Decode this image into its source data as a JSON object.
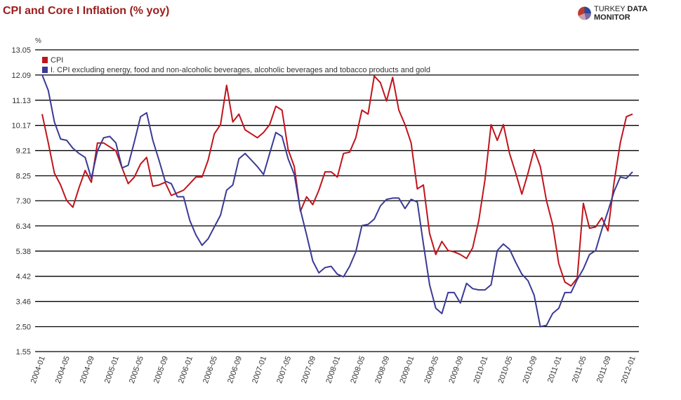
{
  "header": {
    "title": "CPI and Core I Inflation (% yoy)",
    "logo_text_light": "TURKEY",
    "logo_text_bold": "DATA MONITOR"
  },
  "chart_data": {
    "type": "line",
    "title": "CPI and Core I Inflation (% yoy)",
    "ylabel": "%",
    "xlabel": "",
    "ylim": [
      1.55,
      13.05
    ],
    "yticks": [
      "13.05",
      "12.09",
      "11.13",
      "10.17",
      "9.21",
      "8.25",
      "7.30",
      "6.34",
      "5.38",
      "4.42",
      "3.46",
      "2.50",
      "1.55"
    ],
    "xrange": [
      "2004-01",
      "2012-01"
    ],
    "xticks": [
      "2004-01",
      "2004-05",
      "2004-09",
      "2005-01",
      "2005-05",
      "2005-09",
      "2006-01",
      "2006-05",
      "2006-09",
      "2007-01",
      "2007-05",
      "2007-09",
      "2008-01",
      "2008-05",
      "2008-09",
      "2009-01",
      "2009-05",
      "2009-09",
      "2010-01",
      "2010-05",
      "2010-09",
      "2011-01",
      "2011-05",
      "2011-09",
      "2012-01"
    ],
    "grid": true,
    "legend_position": "top-left",
    "frequency": "monthly",
    "series": [
      {
        "name": "CPI",
        "color": "#c0141c",
        "values": [
          10.6,
          9.5,
          8.35,
          7.9,
          7.3,
          7.05,
          7.8,
          8.45,
          8.0,
          9.5,
          9.5,
          9.35,
          9.2,
          8.55,
          7.95,
          8.2,
          8.7,
          8.95,
          7.85,
          7.9,
          8.0,
          7.5,
          7.6,
          7.7,
          7.95,
          8.2,
          8.2,
          8.85,
          9.85,
          10.2,
          11.7,
          10.3,
          10.6,
          10.0,
          9.85,
          9.7,
          9.9,
          10.2,
          10.9,
          10.75,
          9.25,
          8.6,
          6.9,
          7.45,
          7.15,
          7.7,
          8.4,
          8.4,
          8.2,
          9.1,
          9.15,
          9.7,
          10.75,
          10.6,
          12.05,
          11.8,
          11.1,
          12.0,
          10.75,
          10.2,
          9.5,
          7.75,
          7.9,
          6.05,
          5.25,
          5.75,
          5.4,
          5.35,
          5.25,
          5.1,
          5.5,
          6.55,
          8.1,
          10.2,
          9.6,
          10.2,
          9.1,
          8.35,
          7.55,
          8.35,
          9.25,
          8.6,
          7.3,
          6.4,
          4.9,
          4.2,
          4.05,
          4.35,
          7.2,
          6.25,
          6.3,
          6.65,
          6.15,
          8.0,
          9.5,
          10.5,
          10.6
        ]
      },
      {
        "name": "I. CPI excluding energy, food and non-alcoholic beverages, alcoholic beverages and tobacco products and gold",
        "color": "#3a3a96",
        "values": [
          12.1,
          11.5,
          10.3,
          9.65,
          9.6,
          9.3,
          9.1,
          8.95,
          8.15,
          9.2,
          9.7,
          9.75,
          9.5,
          8.55,
          8.65,
          9.55,
          10.5,
          10.65,
          9.6,
          8.85,
          8.05,
          7.95,
          7.45,
          7.45,
          6.55,
          6.0,
          5.6,
          5.85,
          6.3,
          6.75,
          7.7,
          7.9,
          8.9,
          9.1,
          8.85,
          8.6,
          8.3,
          9.1,
          9.9,
          9.75,
          8.9,
          8.3,
          6.95,
          6.0,
          5.0,
          4.55,
          4.75,
          4.8,
          4.5,
          4.4,
          4.8,
          5.35,
          6.35,
          6.4,
          6.6,
          7.1,
          7.35,
          7.4,
          7.4,
          7.0,
          7.35,
          7.25,
          5.65,
          4.1,
          3.2,
          3.0,
          3.8,
          3.8,
          3.4,
          4.15,
          3.95,
          3.9,
          3.9,
          4.1,
          5.4,
          5.65,
          5.45,
          4.95,
          4.5,
          4.25,
          3.7,
          2.5,
          2.55,
          3.0,
          3.2,
          3.8,
          3.8,
          4.3,
          4.7,
          5.25,
          5.4,
          6.2,
          6.9,
          7.65,
          8.2,
          8.15,
          8.4
        ]
      }
    ]
  }
}
